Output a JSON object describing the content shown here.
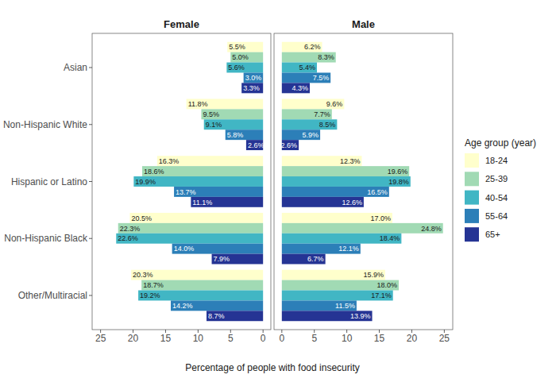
{
  "chart_data": {
    "type": "bar",
    "orientation": "horizontal",
    "data_labels": true,
    "grid": false,
    "legend": "right",
    "x_label": "Percentage of people with food insecurity",
    "legend_title": "Age group (year)",
    "panels": [
      "Female",
      "Male"
    ],
    "categories": [
      "Asian",
      "Non-Hispanic White",
      "Hispanic or Latino",
      "Non-Hispanic Black",
      "Other/Multiracial"
    ],
    "xlim": [
      -1.2,
      26.3
    ],
    "xticks": [
      0,
      5,
      10,
      15,
      20,
      25
    ],
    "series": [
      {
        "name": "18-24",
        "color": "#ffffcc",
        "values": [
          [
            5.5,
            11.8,
            16.3,
            20.5,
            20.3
          ],
          [
            6.2,
            9.6,
            12.3,
            17.0,
            15.9
          ]
        ],
        "value_labels": [
          [
            "5.5%",
            "11.8%",
            "16.3%",
            "20.5%",
            "20.3%"
          ],
          [
            "6.2%",
            "9.6%",
            "12.3%",
            "17.0%",
            "15.9%"
          ]
        ]
      },
      {
        "name": "25-39",
        "color": "#a1dab4",
        "values": [
          [
            5.0,
            9.5,
            18.6,
            22.3,
            18.7
          ],
          [
            8.3,
            7.7,
            19.6,
            24.8,
            18.0
          ]
        ],
        "value_labels": [
          [
            "5.0%",
            "9.5%",
            "18.6%",
            "22.3%",
            "18.7%"
          ],
          [
            "8.3%",
            "7.7%",
            "19.6%",
            "24.8%",
            "18.0%"
          ]
        ]
      },
      {
        "name": "40-54",
        "color": "#41b6c4",
        "values": [
          [
            5.6,
            9.1,
            19.9,
            22.6,
            19.2
          ],
          [
            5.4,
            8.5,
            19.8,
            18.4,
            17.1
          ]
        ],
        "value_labels": [
          [
            "5.6%",
            "9.1%",
            "19.9%",
            "22.6%",
            "19.2%"
          ],
          [
            "5.4%",
            "8.5%",
            "19.8%",
            "18.4%",
            "17.1%"
          ]
        ]
      },
      {
        "name": "55-64",
        "color": "#2c7fb8",
        "values": [
          [
            3.0,
            5.8,
            13.7,
            14.0,
            14.2
          ],
          [
            7.5,
            5.9,
            16.5,
            12.1,
            11.5
          ]
        ],
        "value_labels": [
          [
            "3.0%",
            "5.8%",
            "13.7%",
            "14.0%",
            "14.2%"
          ],
          [
            "7.5%",
            "5.9%",
            "16.5%",
            "12.1%",
            "11.5%"
          ]
        ]
      },
      {
        "name": "65+",
        "color": "#253494",
        "values": [
          [
            3.3,
            2.6,
            11.1,
            7.9,
            8.7
          ],
          [
            4.3,
            2.6,
            12.6,
            6.7,
            13.9
          ]
        ],
        "value_labels": [
          [
            "3.3%",
            "2.6%",
            "11.1%",
            "7.9%",
            "8.7%"
          ],
          [
            "4.3%",
            "2.6%",
            "12.6%",
            "6.7%",
            "13.9%"
          ]
        ]
      }
    ]
  }
}
